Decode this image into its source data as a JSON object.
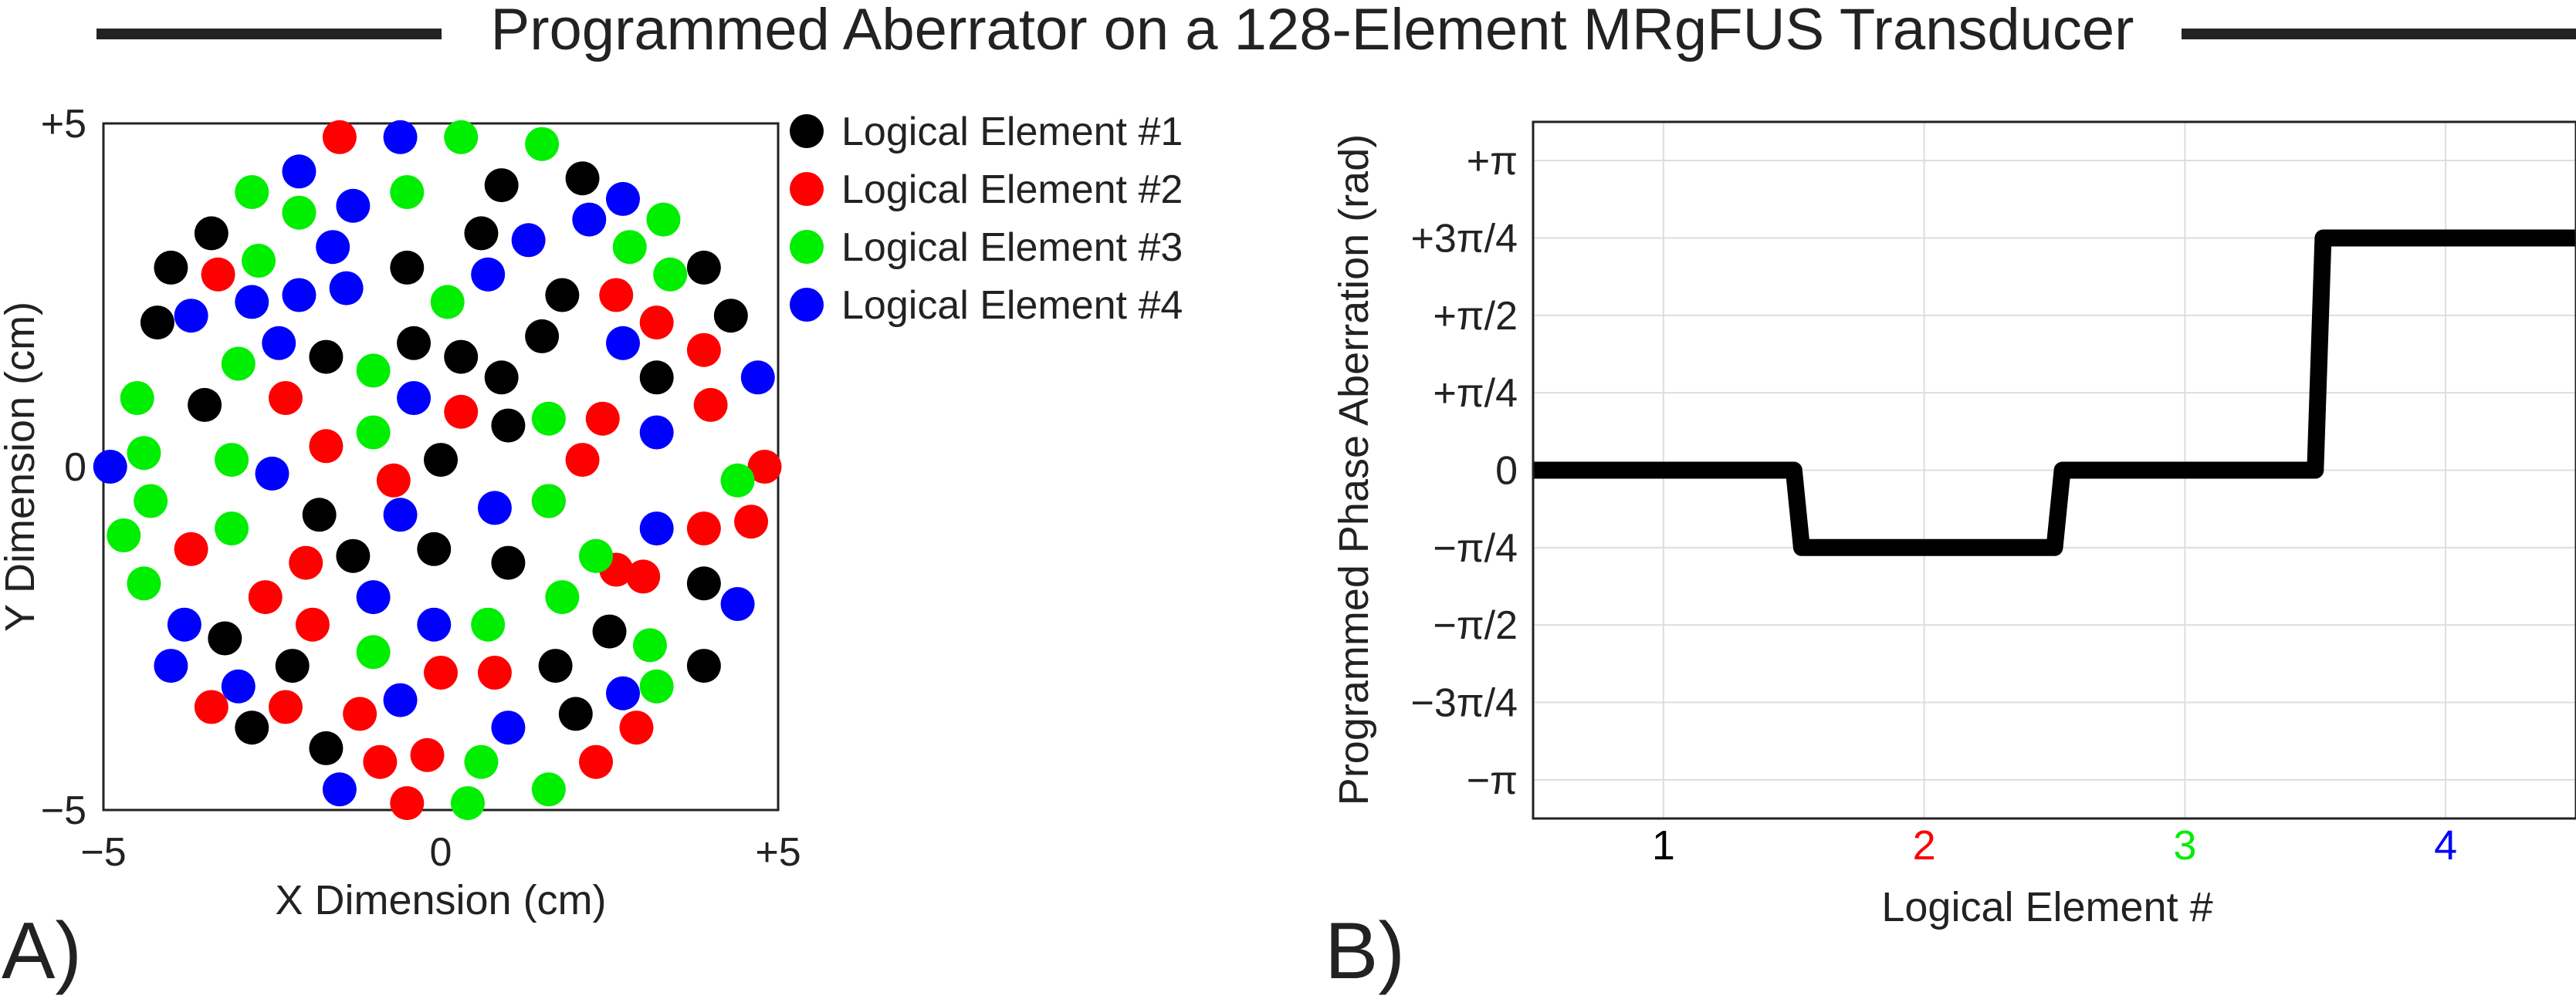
{
  "title": "Programmed Aberrator on a 128-Element MRgFUS Transducer",
  "colors": {
    "element_1": "#000000",
    "element_2": "#ff0000",
    "element_3": "#00ee00",
    "element_4": "#0000ff",
    "axis": "#000000",
    "grid": "#dddddd"
  },
  "panel_labels": {
    "a": "A)",
    "b": "B)"
  },
  "chart_data": [
    {
      "type": "scatter",
      "xlabel": "X Dimension (cm)",
      "ylabel": "Y Dimension (cm)",
      "xlim": [
        -5,
        5
      ],
      "ylim": [
        -5,
        5
      ],
      "xticks": [
        -5,
        0,
        5
      ],
      "xtick_labels": [
        "−5",
        "0",
        "+5"
      ],
      "yticks": [
        -5,
        0,
        5
      ],
      "ytick_labels": [
        "−5",
        "0",
        "+5"
      ],
      "grid": false,
      "legend_position": "outside-right",
      "series": [
        {
          "name": "Logical Element #1",
          "color": "#000000",
          "points": [
            [
              -3.4,
              3.4
            ],
            [
              -4.0,
              2.9
            ],
            [
              -4.2,
              2.1
            ],
            [
              -1.7,
              1.6
            ],
            [
              -0.5,
              2.9
            ],
            [
              0.9,
              4.1
            ],
            [
              2.1,
              4.2
            ],
            [
              0.6,
              3.4
            ],
            [
              1.8,
              2.5
            ],
            [
              1.5,
              1.9
            ],
            [
              0.3,
              1.6
            ],
            [
              -0.4,
              1.8
            ],
            [
              0.9,
              1.3
            ],
            [
              3.2,
              1.3
            ],
            [
              3.9,
              2.9
            ],
            [
              4.3,
              2.2
            ],
            [
              -3.5,
              0.9
            ],
            [
              0.0,
              0.1
            ],
            [
              1.0,
              0.6
            ],
            [
              -1.8,
              -0.7
            ],
            [
              -1.3,
              -1.3
            ],
            [
              -0.1,
              -1.2
            ],
            [
              1.0,
              -1.4
            ],
            [
              3.9,
              -1.7
            ],
            [
              2.5,
              -2.4
            ],
            [
              -3.2,
              -2.5
            ],
            [
              1.7,
              -2.9
            ],
            [
              -2.2,
              -2.9
            ],
            [
              3.9,
              -2.9
            ],
            [
              -2.8,
              -3.8
            ],
            [
              2.0,
              -3.6
            ],
            [
              -1.7,
              -4.1
            ]
          ]
        },
        {
          "name": "Logical Element #2",
          "color": "#ff0000",
          "points": [
            [
              -1.5,
              4.8
            ],
            [
              -3.3,
              2.8
            ],
            [
              2.6,
              2.5
            ],
            [
              3.2,
              2.1
            ],
            [
              3.9,
              1.7
            ],
            [
              -2.3,
              1.0
            ],
            [
              0.3,
              0.8
            ],
            [
              2.4,
              0.7
            ],
            [
              4.0,
              0.9
            ],
            [
              -1.7,
              0.3
            ],
            [
              -0.7,
              -0.2
            ],
            [
              2.1,
              0.1
            ],
            [
              4.8,
              0.0
            ],
            [
              -3.7,
              -1.2
            ],
            [
              -2.0,
              -1.4
            ],
            [
              2.6,
              -1.5
            ],
            [
              4.6,
              -0.8
            ],
            [
              3.9,
              -0.9
            ],
            [
              -2.6,
              -1.9
            ],
            [
              -1.9,
              -2.3
            ],
            [
              0.0,
              -3.0
            ],
            [
              0.8,
              -3.0
            ],
            [
              3.0,
              -1.6
            ],
            [
              -3.4,
              -3.5
            ],
            [
              -2.3,
              -3.5
            ],
            [
              -1.2,
              -3.6
            ],
            [
              2.9,
              -3.8
            ],
            [
              -0.9,
              -4.3
            ],
            [
              -0.2,
              -4.2
            ],
            [
              -0.5,
              -4.9
            ],
            [
              2.3,
              -4.3
            ],
            [
              1.6,
              -0.5
            ]
          ]
        },
        {
          "name": "Logical Element #3",
          "color": "#00ee00",
          "points": [
            [
              0.3,
              4.8
            ],
            [
              1.5,
              4.7
            ],
            [
              -2.8,
              4.0
            ],
            [
              -0.5,
              4.0
            ],
            [
              -2.1,
              3.7
            ],
            [
              -2.7,
              3.0
            ],
            [
              3.3,
              3.6
            ],
            [
              2.8,
              3.2
            ],
            [
              3.4,
              2.8
            ],
            [
              0.1,
              2.4
            ],
            [
              -1.0,
              1.4
            ],
            [
              -4.5,
              1.0
            ],
            [
              -3.0,
              1.5
            ],
            [
              1.6,
              0.7
            ],
            [
              -4.4,
              0.2
            ],
            [
              -3.1,
              0.1
            ],
            [
              -1.0,
              0.5
            ],
            [
              -4.3,
              -0.5
            ],
            [
              -4.7,
              -1.0
            ],
            [
              -3.1,
              -0.9
            ],
            [
              1.6,
              -0.5
            ],
            [
              4.4,
              -0.2
            ],
            [
              2.3,
              -1.3
            ],
            [
              -4.4,
              -1.7
            ],
            [
              1.8,
              -1.9
            ],
            [
              0.7,
              -2.3
            ],
            [
              -1.0,
              -2.7
            ],
            [
              3.1,
              -2.6
            ],
            [
              3.2,
              -3.2
            ],
            [
              0.6,
              -4.3
            ],
            [
              1.6,
              -4.7
            ],
            [
              0.4,
              -4.9
            ]
          ]
        },
        {
          "name": "Logical Element #4",
          "color": "#0000ff",
          "points": [
            [
              -0.6,
              4.8
            ],
            [
              -2.1,
              4.3
            ],
            [
              -1.3,
              3.8
            ],
            [
              2.2,
              3.6
            ],
            [
              2.7,
              3.9
            ],
            [
              1.3,
              3.3
            ],
            [
              -1.6,
              3.2
            ],
            [
              0.7,
              2.8
            ],
            [
              -1.4,
              2.6
            ],
            [
              -2.1,
              2.5
            ],
            [
              -2.8,
              2.4
            ],
            [
              -3.7,
              2.2
            ],
            [
              -2.4,
              1.8
            ],
            [
              2.7,
              1.8
            ],
            [
              4.7,
              1.3
            ],
            [
              -0.4,
              1.0
            ],
            [
              3.2,
              0.5
            ],
            [
              -4.9,
              0.0
            ],
            [
              -2.5,
              -0.1
            ],
            [
              -0.6,
              -0.7
            ],
            [
              0.8,
              -0.6
            ],
            [
              3.2,
              -0.9
            ],
            [
              -1.0,
              -1.9
            ],
            [
              -0.1,
              -2.3
            ],
            [
              -3.8,
              -2.3
            ],
            [
              4.4,
              -2.0
            ],
            [
              -4.0,
              -2.9
            ],
            [
              -3.0,
              -3.2
            ],
            [
              2.7,
              -3.3
            ],
            [
              -0.6,
              -3.4
            ],
            [
              1.0,
              -3.8
            ],
            [
              -1.5,
              -4.7
            ]
          ]
        }
      ]
    },
    {
      "type": "line",
      "xlabel": "Logical Element #",
      "ylabel": "Programmed Phase Aberration (rad)",
      "xlim": [
        0.5,
        4.5
      ],
      "ylim": [
        -3.534,
        3.534
      ],
      "xticks": [
        1,
        2,
        3,
        4
      ],
      "xtick_labels": [
        "1",
        "2",
        "3",
        "4"
      ],
      "xtick_colors": [
        "#000000",
        "#ff0000",
        "#00ee00",
        "#0000ff"
      ],
      "yticks": [
        3.1416,
        2.3562,
        1.5708,
        0.7854,
        0,
        -0.7854,
        -1.5708,
        -2.3562,
        -3.1416
      ],
      "ytick_labels": [
        "+π",
        "+3π/4",
        "+π/2",
        "+π/4",
        "0",
        "−π/4",
        "−π/2",
        "−3π/4",
        "−π"
      ],
      "grid": true,
      "series": [
        {
          "color": "#000000",
          "x": [
            0.5,
            1.5,
            1.53,
            2.5,
            2.53,
            3.5,
            3.53,
            4.5
          ],
          "y": [
            0,
            0,
            -0.7854,
            -0.7854,
            0,
            0,
            2.3562,
            2.3562
          ]
        }
      ]
    }
  ]
}
